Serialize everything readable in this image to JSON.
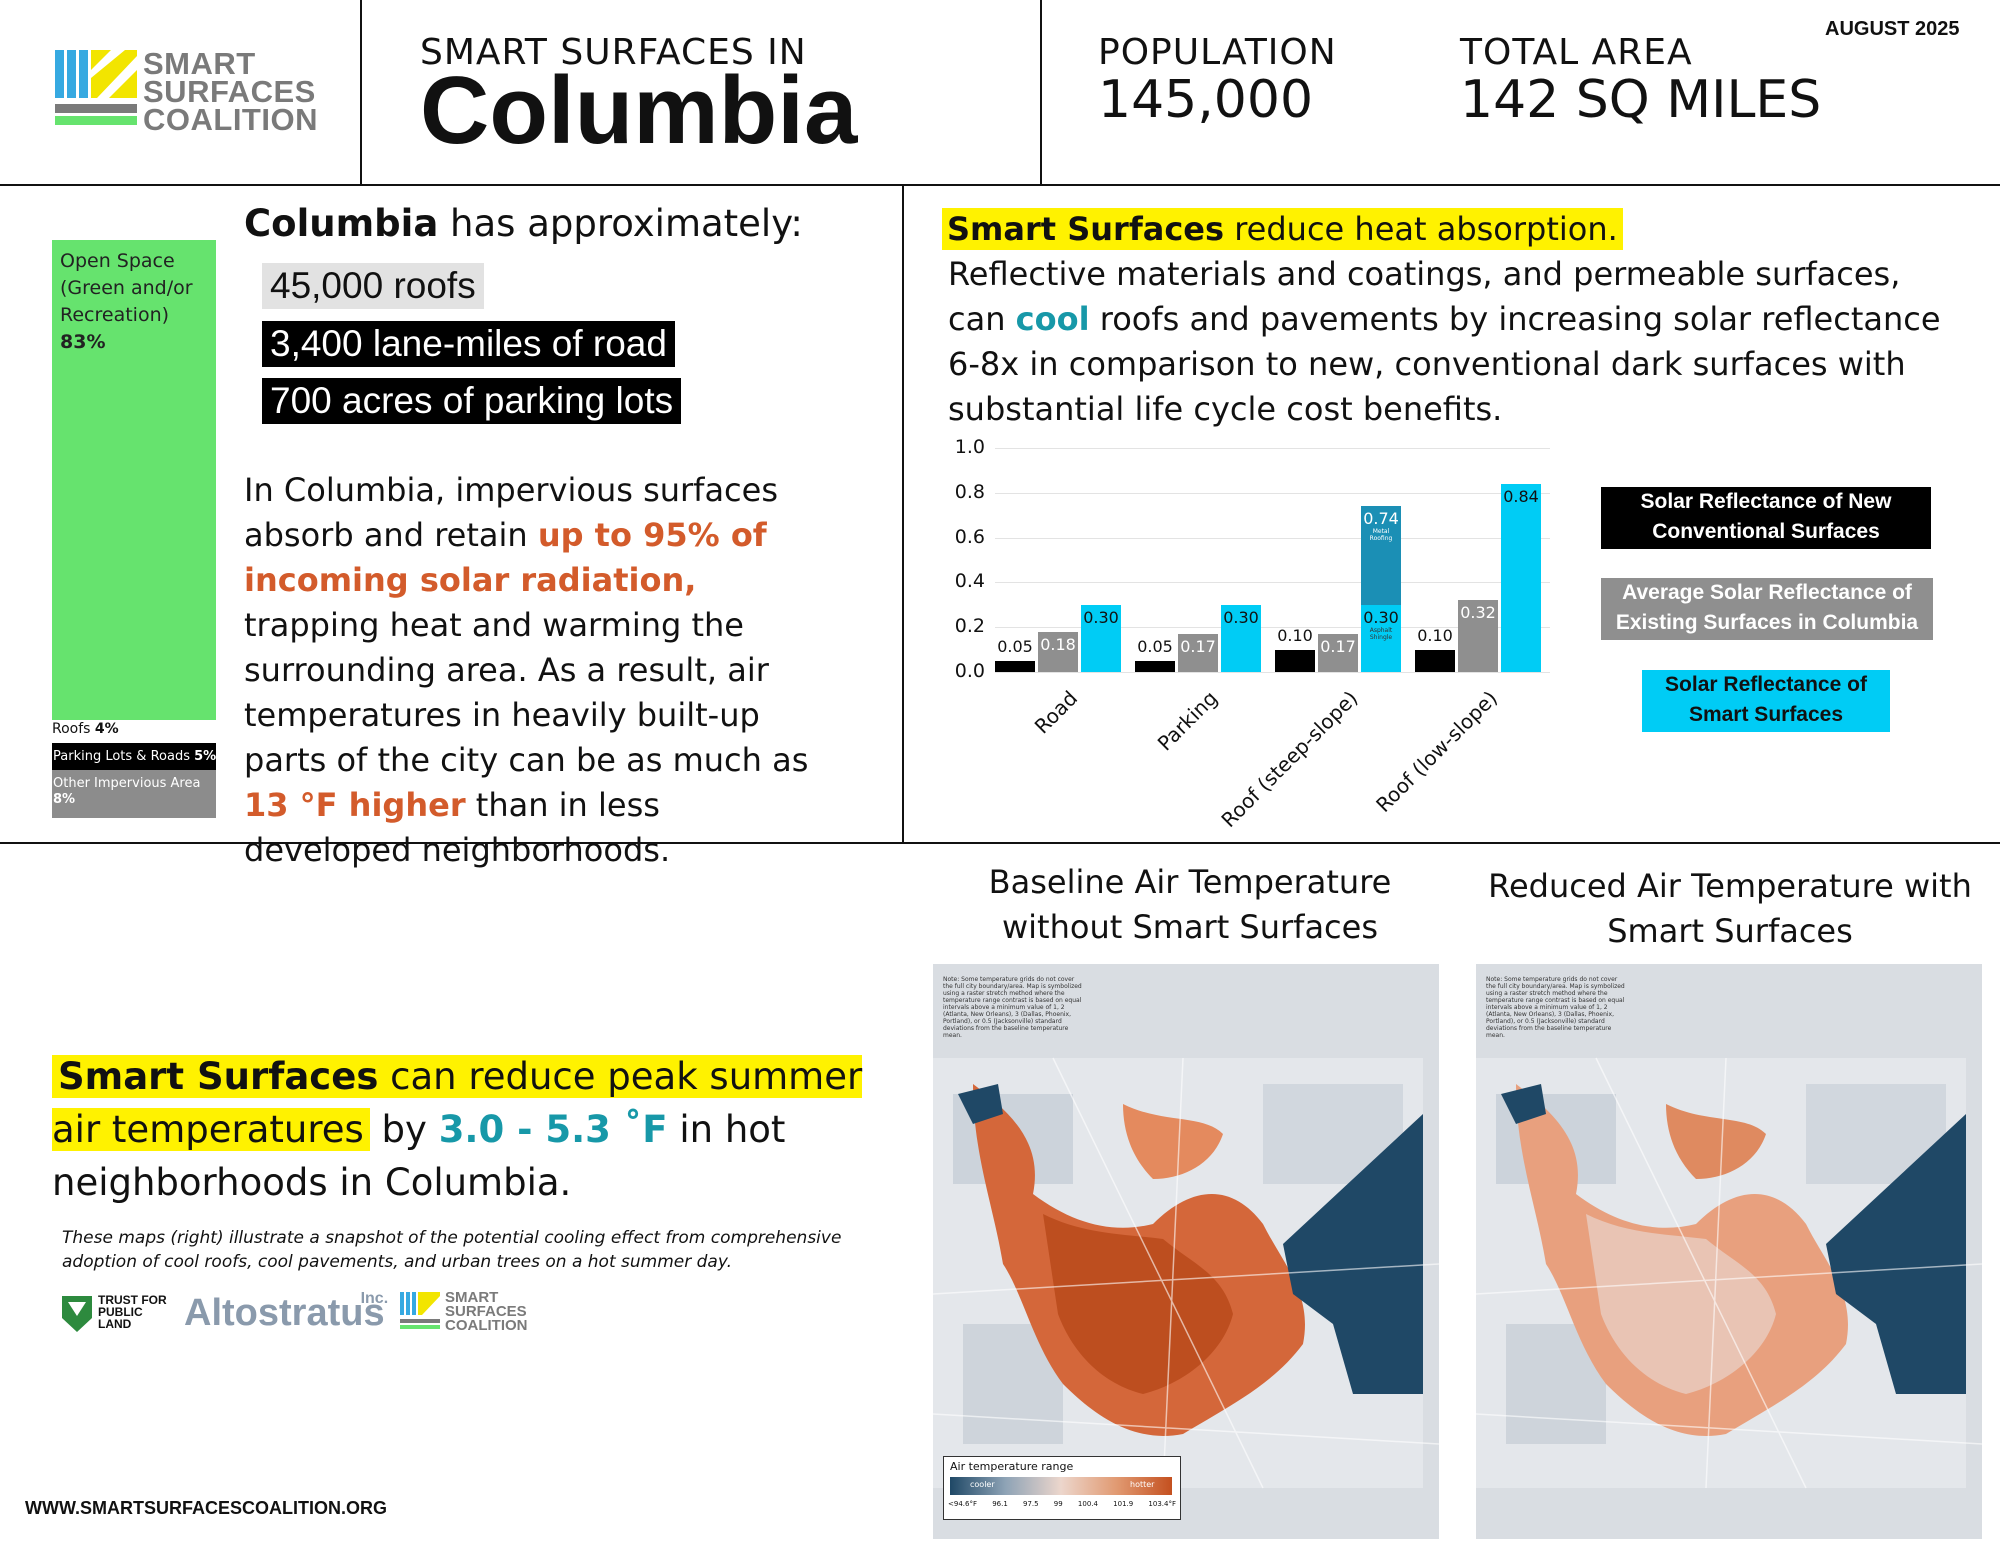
{
  "header": {
    "logo_lines": [
      "SMART",
      "SURFACES",
      "COALITION"
    ],
    "title_prefix": "SMART SURFACES IN",
    "city": "Columbia",
    "population_label": "POPULATION",
    "population_value": "145,000",
    "area_label": "TOTAL AREA",
    "area_value": "142 SQ MILES",
    "date": "AUGUST 2025"
  },
  "land_use": {
    "open_space_label": "Open Space (Green and/or Recreation)",
    "open_space_pct": "83%",
    "roofs_label": "Roofs",
    "roofs_pct": "4%",
    "parking_label": "Parking Lots & Roads",
    "parking_pct": "5%",
    "other_label": "Other Impervious Area",
    "other_pct": "8%",
    "colors": {
      "open": "#66e36e",
      "roofs": "#ffffff",
      "parking": "#000000",
      "other": "#8c8c8c"
    }
  },
  "facts": {
    "intro_city": "Columbia",
    "intro_rest": " has approximately:",
    "roofs": "45,000 roofs",
    "roads": "3,400 lane-miles of road",
    "parking": "700 acres of parking lots"
  },
  "paragraph": {
    "p1": "In Columbia, impervious surfaces absorb and retain ",
    "p1_highlight": "up to 95% of incoming solar radiation,",
    "p2": " trapping heat and warming the surrounding area. As a result, air temperatures in heavily built-up parts of the city can be as much as ",
    "p2_highlight": "13 °F higher",
    "p3": " than in less developed neighborhoods."
  },
  "reflectance": {
    "heading_bold": "Smart Surfaces",
    "heading_rest": " reduce heat absorption.",
    "body_1": "Reflective materials and coatings, and permeable surfaces, can ",
    "body_cool": "cool",
    "body_2": " roofs and pavements by increasing solar reflectance 6-8x in comparison to new, conventional dark surfaces with substantial life cycle cost benefits."
  },
  "chart_data": {
    "type": "bar",
    "title": "",
    "categories": [
      "Road",
      "Parking",
      "Roof (steep-slope)",
      "Roof (low-slope)"
    ],
    "series": [
      {
        "name": "Solar Reflectance of New Conventional Surfaces",
        "color": "#000000",
        "values": [
          0.05,
          0.05,
          0.1,
          0.1
        ]
      },
      {
        "name": "Average Solar Reflectance of Existing Surfaces in Columbia",
        "color": "#8f8f8f",
        "values": [
          0.18,
          0.17,
          0.17,
          0.32
        ]
      },
      {
        "name": "Solar Reflectance of Smart Surfaces",
        "color": "#00ccf5",
        "values": [
          0.3,
          0.3,
          0.3,
          0.84
        ]
      }
    ],
    "stacked_extra": {
      "category": "Roof (steep-slope)",
      "value": 0.74,
      "color": "#1b8fb5",
      "note": "Metal Roofing",
      "base_note": "Asphalt Shingle"
    },
    "value_labels": [
      "0.05",
      "0.18",
      "0.30",
      "0.05",
      "0.17",
      "0.30",
      "0.10",
      "0.17",
      "0.30",
      "0.74",
      "0.10",
      "0.32",
      "0.84"
    ],
    "ylim": [
      0,
      1.0
    ],
    "yticks": [
      "0.0",
      "0.2",
      "0.4",
      "0.6",
      "0.8",
      "1.0"
    ],
    "xlabel": "",
    "ylabel": "",
    "legend": [
      "Solar Reflectance of New Conventional Surfaces",
      "Average Solar Reflectance of Existing Surfaces in Columbia",
      "Solar Reflectance of Smart Surfaces"
    ]
  },
  "maps": {
    "baseline_title": "Baseline Air Temperature without Smart Surfaces",
    "reduced_title": "Reduced Air Temperature with Smart Surfaces",
    "note": "Note: Some temperature grids do not cover the full city boundary/area. Map is symbolized using a raster stretch method where the temperature range contrast is based on equal intervals above a minimum value of 1, 2 (Atlanta, New Orleans), 3 (Dallas, Phoenix, Portland), or 0.5 (Jacksonville) standard deviations from the baseline temperature mean.",
    "legend_title": "Air temperature range",
    "legend_cooler": "cooler",
    "legend_hotter": "hotter",
    "legend_ticks": [
      "<94.6°F",
      "96.1",
      "97.5",
      "99",
      "100.4",
      "101.9",
      "103.4°F"
    ]
  },
  "summary": {
    "bold": "Smart Surfaces",
    "rest1": " can reduce peak summer air temperatures",
    "by": " by ",
    "range": "3.0 - 5.3 ˚F",
    "rest2": " in hot neighborhoods in Columbia.",
    "caption": "These maps (right) illustrate a snapshot of the potential cooling effect from comprehensive adoption of cool roofs, cool pavements, and urban trees on a hot summer day."
  },
  "partners": {
    "tpl_lines": [
      "TRUST FOR",
      "PUBLIC",
      "LAND"
    ],
    "altostratus": "Altostratus",
    "altostratus_inc": "Inc.",
    "ssc_lines": [
      "SMART",
      "SURFACES",
      "COALITION"
    ]
  },
  "footer": {
    "website": "WWW.SMARTSURFACESCOALITION.ORG"
  }
}
